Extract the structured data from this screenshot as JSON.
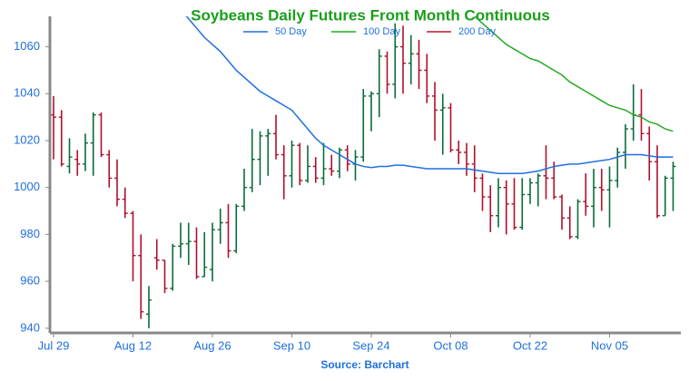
{
  "chart_data": {
    "type": "ohlc",
    "title": "Soybeans Daily Futures Front Month Continuous",
    "source": "Source: Barchart",
    "categories": [
      "Jul 29",
      null,
      null,
      null,
      null,
      null,
      null,
      null,
      null,
      null,
      "Aug 12",
      null,
      null,
      null,
      null,
      null,
      null,
      null,
      null,
      null,
      "Aug 26",
      null,
      null,
      null,
      null,
      null,
      null,
      null,
      null,
      null,
      "Sep 10",
      null,
      null,
      null,
      null,
      null,
      null,
      null,
      null,
      null,
      "Sep 24",
      null,
      null,
      null,
      null,
      null,
      null,
      null,
      null,
      null,
      "Oct 08",
      null,
      null,
      null,
      null,
      null,
      null,
      null,
      null,
      null,
      "Oct 22",
      null,
      null,
      null,
      null,
      null,
      null,
      null,
      null,
      null,
      "Nov 05",
      null,
      null,
      null,
      null,
      null,
      null,
      null,
      null
    ],
    "open": [
      1031,
      1030,
      1009,
      1012,
      1010,
      1019,
      1031,
      1014,
      1004,
      995,
      989,
      971,
      946,
      970,
      969,
      957,
      975,
      976,
      977,
      962,
      965,
      982,
      985,
      973,
      992,
      1000,
      1012,
      1022,
      1023,
      1014,
      1005,
      1018,
      1003,
      1009,
      1004,
      1008,
      1007,
      1016,
      1010,
      1013,
      1039,
      1040,
      1056,
      1044,
      1060,
      1053,
      1057,
      1050,
      1039,
      1033,
      1034,
      1016,
      1015,
      1010,
      1004,
      996,
      988,
      1000,
      993,
      983,
      997,
      1002,
      1005,
      1004,
      996,
      987,
      979,
      994,
      992,
      1000,
      999,
      1003,
      1015,
      1025,
      1031,
      1023,
      1011,
      988,
      1004
    ],
    "high": [
      1039,
      1033,
      1021,
      1016,
      1023,
      1032,
      1032,
      1016,
      1012,
      1000,
      990,
      980,
      958,
      978,
      969,
      976,
      985,
      985,
      983,
      981,
      985,
      991,
      993,
      993,
      1008,
      1025,
      1024,
      1025,
      1031,
      1018,
      1020,
      1019,
      1018,
      1013,
      1019,
      1014,
      1017,
      1018,
      1016,
      1042,
      1041,
      1059,
      1058,
      1070,
      1069,
      1065,
      1063,
      1057,
      1045,
      1040,
      1036,
      1020,
      1019,
      1018,
      1006,
      1001,
      1004,
      1003,
      1004,
      1004,
      1004,
      1006,
      1018,
      1011,
      997,
      992,
      995,
      1006,
      1008,
      1008,
      1009,
      1017,
      1027,
      1044,
      1042,
      1026,
      1018,
      1005,
      1011
    ],
    "low": [
      1012,
      1009,
      1006,
      1005,
      1007,
      1005,
      1013,
      1000,
      992,
      987,
      960,
      944,
      940,
      965,
      955,
      956,
      970,
      967,
      961,
      962,
      960,
      976,
      970,
      972,
      990,
      998,
      1001,
      1005,
      1012,
      995,
      1000,
      1001,
      1002,
      1002,
      1001,
      1005,
      1004,
      1007,
      1003,
      1011,
      1024,
      1030,
      1040,
      1038,
      1040,
      1044,
      1042,
      1036,
      1020,
      1014,
      1015,
      1010,
      1005,
      998,
      990,
      981,
      983,
      980,
      982,
      982,
      993,
      992,
      995,
      995,
      982,
      978,
      978,
      988,
      983,
      990,
      983,
      1000,
      1008,
      1020,
      1020,
      1003,
      987,
      988,
      990
    ],
    "close": [
      1030,
      1010,
      1013,
      1010,
      1019,
      1031,
      1014,
      1004,
      995,
      989,
      971,
      947,
      952,
      969,
      957,
      975,
      976,
      977,
      962,
      966,
      982,
      985,
      973,
      992,
      1000,
      1012,
      1022,
      1023,
      1014,
      1005,
      1018,
      1003,
      1009,
      1004,
      1008,
      1007,
      1016,
      1010,
      1013,
      1039,
      1040,
      1056,
      1044,
      1060,
      1053,
      1057,
      1050,
      1039,
      1033,
      1034,
      1016,
      1015,
      1010,
      1004,
      996,
      988,
      1000,
      993,
      983,
      997,
      1002,
      1005,
      1004,
      996,
      987,
      979,
      994,
      992,
      1000,
      999,
      1003,
      1015,
      1025,
      1031,
      1023,
      1011,
      988,
      1004,
      1009
    ],
    "up_color": "#0b6b3a",
    "down_color": "#b0102a",
    "series": [
      {
        "name": "50 Day",
        "color": "#1f6fe0",
        "values": [
          null,
          null,
          null,
          null,
          null,
          null,
          null,
          null,
          null,
          null,
          null,
          null,
          null,
          null,
          null,
          null,
          1076,
          1072,
          1068,
          1064,
          1061,
          1058,
          1054,
          1050,
          1047,
          1044,
          1041,
          1039,
          1037,
          1035,
          1033,
          1029,
          1025,
          1021,
          1018,
          1016,
          1014,
          1012,
          1010,
          1009,
          1008.5,
          1009,
          1009,
          1009.5,
          1009.5,
          1009,
          1008.5,
          1008,
          1008,
          1008,
          1008,
          1008,
          1008,
          1007.5,
          1007,
          1006.5,
          1006,
          1006,
          1006,
          1006,
          1006.5,
          1007,
          1008,
          1009,
          1009.5,
          1010,
          1010,
          1010.5,
          1011,
          1011.5,
          1012,
          1013,
          1014,
          1014,
          1014,
          1013.5,
          1013,
          1013,
          1013
        ]
      },
      {
        "name": "100 Day",
        "color": "#22a822",
        "values": [
          null,
          null,
          null,
          null,
          null,
          null,
          null,
          null,
          null,
          null,
          null,
          null,
          null,
          null,
          null,
          null,
          null,
          null,
          null,
          null,
          null,
          null,
          null,
          null,
          null,
          null,
          null,
          null,
          null,
          null,
          null,
          null,
          null,
          null,
          null,
          null,
          null,
          null,
          null,
          null,
          null,
          null,
          null,
          null,
          null,
          null,
          null,
          null,
          null,
          null,
          null,
          null,
          null,
          1073,
          1070,
          1067,
          1064,
          1061,
          1059,
          1057,
          1055,
          1054,
          1052,
          1050,
          1048,
          1045,
          1043,
          1041,
          1039,
          1037,
          1035,
          1034,
          1033,
          1031,
          1030,
          1028,
          1027,
          1025,
          1024
        ]
      },
      {
        "name": "200 Day",
        "color": "#c0152f"
      }
    ],
    "ylim": [
      938,
      1073
    ],
    "yticks": [
      940,
      960,
      980,
      1000,
      1020,
      1040,
      1060
    ],
    "legend": "top"
  }
}
